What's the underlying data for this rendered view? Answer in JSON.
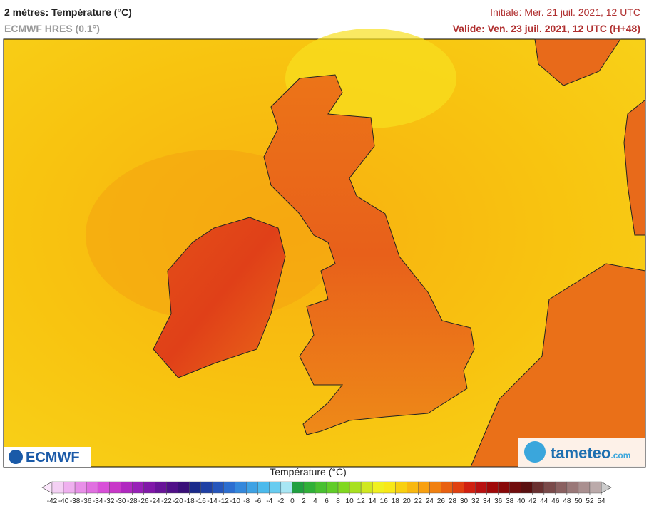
{
  "header": {
    "title": "2 mètres: Température (°C)",
    "model": "ECMWF HRES (0.1°)",
    "initial": "Initiale: Mer. 21 juil. 2021, 12 UTC",
    "valid": "Valide: Ven. 23 juil. 2021, 12 UTC (H+48)"
  },
  "logos": {
    "left": "ECMWF",
    "right": "tameteo",
    "right_suffix": ".com"
  },
  "legend": {
    "title": "Température (°C)",
    "ticks": [
      -42,
      -40,
      -38,
      -36,
      -34,
      -32,
      -30,
      -28,
      -26,
      -24,
      -22,
      -20,
      -18,
      -16,
      -14,
      -12,
      -10,
      -8,
      -6,
      -4,
      -2,
      0,
      2,
      4,
      6,
      8,
      10,
      12,
      14,
      16,
      18,
      20,
      22,
      24,
      26,
      28,
      30,
      32,
      34,
      36,
      38,
      40,
      42,
      44,
      46,
      48,
      50,
      52,
      54
    ],
    "colors": [
      "#f4d0f4",
      "#efb0ef",
      "#e890e8",
      "#e070e0",
      "#d850d8",
      "#c838c8",
      "#b028c0",
      "#9820b8",
      "#8018a8",
      "#681498",
      "#501088",
      "#3a1078",
      "#1a2a8a",
      "#1f40a4",
      "#2656bc",
      "#2c6ed0",
      "#3488dc",
      "#3ea2e4",
      "#4cbaec",
      "#68ccf0",
      "#a8e6f4",
      "#20a040",
      "#30b038",
      "#48c030",
      "#60cc28",
      "#80d820",
      "#a8e020",
      "#d0e820",
      "#f0f020",
      "#f8e818",
      "#f8d010",
      "#f8b810",
      "#f8a010",
      "#f08010",
      "#e86010",
      "#e04010",
      "#d02010",
      "#b81010",
      "#a00808",
      "#880808",
      "#700c0c",
      "#5a1010",
      "#6a3030",
      "#7a4a4a",
      "#8a6060",
      "#9a7878",
      "#aa9090",
      "#bbaaaa"
    ]
  }
}
